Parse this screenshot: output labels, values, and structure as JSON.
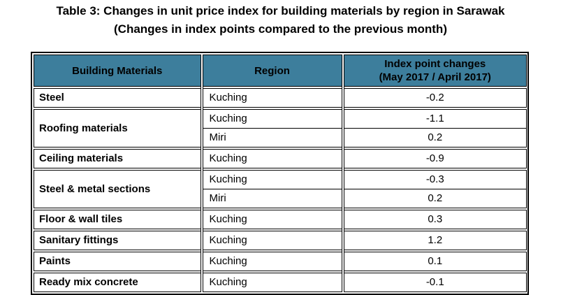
{
  "title": {
    "line1": "Table 3: Changes in unit price index for building materials by region in Sarawak",
    "line2": "(Changes in index points compared to the previous month)"
  },
  "colors": {
    "header_bg": "#3D7E9C",
    "border": "#000000",
    "text": "#000000"
  },
  "table": {
    "headers": {
      "building_materials": "Building Materials",
      "region": "Region",
      "index_changes_line1": "Index point changes",
      "index_changes_line2": "(May 2017 / April 2017)"
    },
    "groups": [
      {
        "material": "Steel",
        "rows": [
          {
            "region": "Kuching",
            "value": "-0.2"
          }
        ]
      },
      {
        "material": "Roofing materials",
        "rows": [
          {
            "region": "Kuching",
            "value": "-1.1"
          },
          {
            "region": "Miri",
            "value": "0.2"
          }
        ]
      },
      {
        "material": "Ceiling materials",
        "rows": [
          {
            "region": "Kuching",
            "value": "-0.9"
          }
        ]
      },
      {
        "material": "Steel & metal sections",
        "rows": [
          {
            "region": "Kuching",
            "value": "-0.3"
          },
          {
            "region": "Miri",
            "value": "0.2"
          }
        ]
      },
      {
        "material": "Floor & wall tiles",
        "rows": [
          {
            "region": "Kuching",
            "value": "0.3"
          }
        ]
      },
      {
        "material": "Sanitary fittings",
        "rows": [
          {
            "region": "Kuching",
            "value": "1.2"
          }
        ]
      },
      {
        "material": "Paints",
        "rows": [
          {
            "region": "Kuching",
            "value": "0.1"
          }
        ]
      },
      {
        "material": "Ready mix concrete",
        "rows": [
          {
            "region": "Kuching",
            "value": "-0.1"
          }
        ]
      }
    ]
  }
}
